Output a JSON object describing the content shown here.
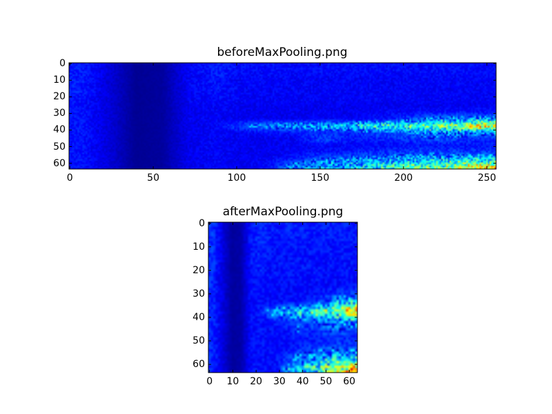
{
  "chart_data": [
    {
      "type": "heatmap",
      "title": "beforeMaxPooling.png",
      "colormap": "jet",
      "shape": [
        64,
        256
      ],
      "xlim": [
        -0.5,
        255.5
      ],
      "ylim": [
        63.5,
        -0.5
      ],
      "xticks": [
        0,
        50,
        100,
        150,
        200,
        250
      ],
      "yticks": [
        0,
        10,
        20,
        30,
        40,
        50,
        60
      ],
      "grid": false,
      "coarse_grid_block": [
        4,
        16
      ],
      "coarse_values": [
        [
          0.15,
          0.09,
          0.02,
          0.03,
          0.12,
          0.15,
          0.13,
          0.13,
          0.13,
          0.13,
          0.13,
          0.13,
          0.13,
          0.13,
          0.13,
          0.13
        ],
        [
          0.15,
          0.09,
          0.02,
          0.03,
          0.12,
          0.15,
          0.13,
          0.13,
          0.13,
          0.13,
          0.13,
          0.13,
          0.13,
          0.13,
          0.13,
          0.13
        ],
        [
          0.15,
          0.09,
          0.02,
          0.03,
          0.12,
          0.14,
          0.12,
          0.12,
          0.12,
          0.12,
          0.12,
          0.12,
          0.12,
          0.12,
          0.12,
          0.12
        ],
        [
          0.15,
          0.09,
          0.02,
          0.03,
          0.12,
          0.14,
          0.12,
          0.12,
          0.12,
          0.12,
          0.12,
          0.12,
          0.12,
          0.12,
          0.12,
          0.12
        ],
        [
          0.15,
          0.09,
          0.02,
          0.03,
          0.12,
          0.14,
          0.12,
          0.12,
          0.12,
          0.12,
          0.12,
          0.12,
          0.12,
          0.12,
          0.12,
          0.12
        ],
        [
          0.14,
          0.09,
          0.02,
          0.03,
          0.12,
          0.13,
          0.12,
          0.12,
          0.12,
          0.12,
          0.12,
          0.12,
          0.12,
          0.12,
          0.12,
          0.12
        ],
        [
          0.14,
          0.09,
          0.02,
          0.03,
          0.11,
          0.12,
          0.11,
          0.11,
          0.11,
          0.11,
          0.11,
          0.11,
          0.11,
          0.11,
          0.11,
          0.11
        ],
        [
          0.14,
          0.09,
          0.02,
          0.03,
          0.11,
          0.12,
          0.11,
          0.11,
          0.11,
          0.11,
          0.11,
          0.12,
          0.13,
          0.14,
          0.15,
          0.15
        ],
        [
          0.14,
          0.09,
          0.02,
          0.03,
          0.11,
          0.12,
          0.11,
          0.11,
          0.11,
          0.12,
          0.12,
          0.13,
          0.17,
          0.24,
          0.26,
          0.28
        ],
        [
          0.14,
          0.09,
          0.02,
          0.03,
          0.11,
          0.12,
          0.2,
          0.25,
          0.27,
          0.3,
          0.32,
          0.4,
          0.42,
          0.45,
          0.52,
          0.65
        ],
        [
          0.14,
          0.09,
          0.02,
          0.03,
          0.11,
          0.12,
          0.12,
          0.13,
          0.14,
          0.16,
          0.17,
          0.19,
          0.2,
          0.22,
          0.24,
          0.26
        ],
        [
          0.14,
          0.09,
          0.02,
          0.03,
          0.11,
          0.12,
          0.11,
          0.11,
          0.12,
          0.2,
          0.14,
          0.15,
          0.17,
          0.2,
          0.18,
          0.16
        ],
        [
          0.14,
          0.09,
          0.02,
          0.03,
          0.11,
          0.12,
          0.11,
          0.11,
          0.11,
          0.12,
          0.12,
          0.13,
          0.13,
          0.14,
          0.14,
          0.14
        ],
        [
          0.14,
          0.09,
          0.02,
          0.03,
          0.11,
          0.12,
          0.11,
          0.11,
          0.12,
          0.14,
          0.15,
          0.17,
          0.18,
          0.19,
          0.18,
          0.18
        ],
        [
          0.14,
          0.09,
          0.02,
          0.03,
          0.11,
          0.12,
          0.11,
          0.12,
          0.15,
          0.22,
          0.23,
          0.24,
          0.26,
          0.3,
          0.3,
          0.32
        ],
        [
          0.14,
          0.09,
          0.02,
          0.03,
          0.11,
          0.12,
          0.11,
          0.13,
          0.25,
          0.28,
          0.3,
          0.35,
          0.42,
          0.45,
          0.5,
          0.6
        ]
      ]
    },
    {
      "type": "heatmap",
      "title": "afterMaxPooling.png",
      "colormap": "jet",
      "shape": [
        64,
        64
      ],
      "xlim": [
        -0.5,
        63.5
      ],
      "ylim": [
        63.5,
        -0.5
      ],
      "xticks": [
        0,
        10,
        20,
        30,
        40,
        50,
        60
      ],
      "yticks": [
        0,
        10,
        20,
        30,
        40,
        50,
        60
      ],
      "grid": false,
      "coarse_grid_block": [
        4,
        4
      ],
      "coarse_values": [
        [
          0.17,
          0.1,
          0.03,
          0.04,
          0.14,
          0.17,
          0.15,
          0.15,
          0.15,
          0.15,
          0.15,
          0.15,
          0.15,
          0.15,
          0.15,
          0.15
        ],
        [
          0.17,
          0.1,
          0.03,
          0.04,
          0.14,
          0.17,
          0.15,
          0.15,
          0.15,
          0.15,
          0.15,
          0.15,
          0.15,
          0.15,
          0.15,
          0.15
        ],
        [
          0.17,
          0.1,
          0.03,
          0.04,
          0.14,
          0.16,
          0.14,
          0.14,
          0.14,
          0.14,
          0.14,
          0.14,
          0.14,
          0.14,
          0.14,
          0.14
        ],
        [
          0.17,
          0.1,
          0.03,
          0.04,
          0.14,
          0.16,
          0.14,
          0.14,
          0.14,
          0.14,
          0.14,
          0.14,
          0.14,
          0.14,
          0.14,
          0.14
        ],
        [
          0.17,
          0.1,
          0.03,
          0.04,
          0.14,
          0.16,
          0.14,
          0.14,
          0.14,
          0.14,
          0.14,
          0.14,
          0.14,
          0.14,
          0.14,
          0.14
        ],
        [
          0.16,
          0.1,
          0.03,
          0.04,
          0.14,
          0.15,
          0.14,
          0.14,
          0.14,
          0.14,
          0.14,
          0.14,
          0.14,
          0.14,
          0.14,
          0.14
        ],
        [
          0.16,
          0.1,
          0.03,
          0.04,
          0.13,
          0.14,
          0.13,
          0.13,
          0.13,
          0.13,
          0.13,
          0.13,
          0.13,
          0.13,
          0.13,
          0.13
        ],
        [
          0.16,
          0.1,
          0.03,
          0.04,
          0.13,
          0.14,
          0.13,
          0.13,
          0.13,
          0.13,
          0.13,
          0.14,
          0.15,
          0.16,
          0.17,
          0.18
        ],
        [
          0.16,
          0.1,
          0.03,
          0.04,
          0.13,
          0.14,
          0.13,
          0.13,
          0.13,
          0.14,
          0.14,
          0.16,
          0.2,
          0.27,
          0.3,
          0.32
        ],
        [
          0.16,
          0.1,
          0.03,
          0.04,
          0.13,
          0.14,
          0.22,
          0.28,
          0.31,
          0.34,
          0.36,
          0.44,
          0.47,
          0.5,
          0.58,
          0.72
        ],
        [
          0.16,
          0.1,
          0.03,
          0.04,
          0.13,
          0.14,
          0.14,
          0.15,
          0.16,
          0.18,
          0.19,
          0.22,
          0.23,
          0.25,
          0.27,
          0.29
        ],
        [
          0.16,
          0.1,
          0.03,
          0.04,
          0.13,
          0.14,
          0.13,
          0.13,
          0.14,
          0.22,
          0.16,
          0.17,
          0.19,
          0.22,
          0.2,
          0.18
        ],
        [
          0.16,
          0.1,
          0.03,
          0.04,
          0.13,
          0.14,
          0.13,
          0.13,
          0.13,
          0.14,
          0.14,
          0.15,
          0.15,
          0.16,
          0.16,
          0.16
        ],
        [
          0.16,
          0.1,
          0.03,
          0.04,
          0.13,
          0.14,
          0.13,
          0.13,
          0.14,
          0.16,
          0.17,
          0.19,
          0.2,
          0.21,
          0.2,
          0.2
        ],
        [
          0.16,
          0.1,
          0.03,
          0.04,
          0.13,
          0.14,
          0.13,
          0.14,
          0.17,
          0.25,
          0.26,
          0.27,
          0.29,
          0.33,
          0.34,
          0.36
        ],
        [
          0.16,
          0.1,
          0.03,
          0.04,
          0.13,
          0.14,
          0.13,
          0.15,
          0.28,
          0.31,
          0.34,
          0.39,
          0.46,
          0.5,
          0.56,
          0.68
        ]
      ]
    }
  ]
}
